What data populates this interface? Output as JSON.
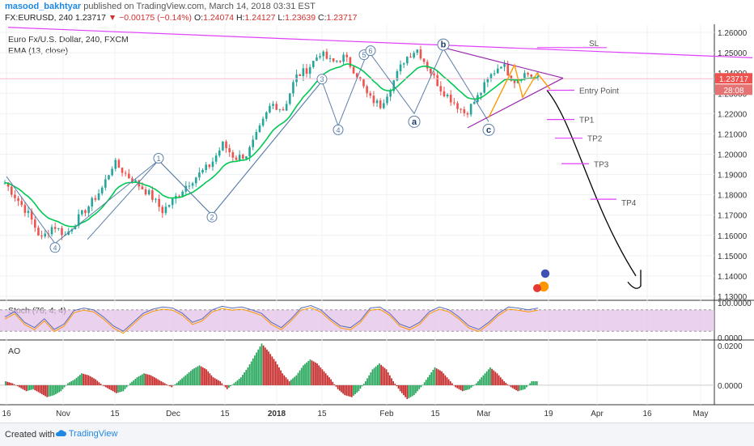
{
  "header": {
    "author": "masood_bakhtyar",
    "published_text": "published on TradingView.com, March 14, 2018 03:31 EST",
    "symbol_line": "FX:EURUSD, 240",
    "last": "1.23717",
    "change": "▼ −0.00175 (−0.14%)",
    "ohlc": [
      {
        "label": "O:",
        "value": "1.24074"
      },
      {
        "label": "H:",
        "value": "1.24127"
      },
      {
        "label": "L:",
        "value": "1.23639"
      },
      {
        "label": "C:",
        "value": "1.23717"
      }
    ]
  },
  "legend": {
    "title": "Euro Fx/U.S. Dollar, 240, FXCM",
    "ema": "EMA (13, close)",
    "stoch": "Stoch (76, 4, 4)",
    "ao": "AO"
  },
  "footer": {
    "created_with": "Created with",
    "brand": "TradingView"
  },
  "colors": {
    "up": "#26a69a",
    "down": "#ef5350",
    "ema": "#00c853",
    "wave": "#5b7ea8",
    "trend": "#e040fb",
    "target": "#e040fb",
    "projection": "#000000",
    "stoch_band": "#e1bee7",
    "price_tag": "#ef5350"
  },
  "chart_data": {
    "type": "candlestick",
    "symbol": "FX:EURUSD",
    "timeframe": "240",
    "x_tick_labels": [
      "16",
      "Nov",
      "15",
      "Dec",
      "15",
      "2018",
      "15",
      "Feb",
      "15",
      "Mar",
      "19",
      "Apr",
      "16",
      "May"
    ],
    "y_ticks": [
      "1.26000",
      "1.25000",
      "1.24000",
      "1.23000",
      "1.22000",
      "1.21000",
      "1.20000",
      "1.19000",
      "1.18000",
      "1.17000",
      "1.16000",
      "1.15000",
      "1.14000",
      "1.13000"
    ],
    "ylim": [
      1.128,
      1.264
    ],
    "price_tag": "1.23717",
    "countdown_tag": "28:08",
    "price_path": [
      1.186,
      1.178,
      1.17,
      1.158,
      1.165,
      1.16,
      1.168,
      1.175,
      1.183,
      1.196,
      1.19,
      1.185,
      1.18,
      1.172,
      1.178,
      1.185,
      1.19,
      1.195,
      1.205,
      1.198,
      1.2,
      1.212,
      1.225,
      1.222,
      1.238,
      1.242,
      1.25,
      1.245,
      1.248,
      1.24,
      1.228,
      1.224,
      1.235,
      1.247,
      1.252,
      1.242,
      1.232,
      1.226,
      1.22,
      1.228,
      1.238,
      1.245,
      1.236,
      1.24,
      1.237
    ],
    "wave_labels": [
      {
        "text": "4",
        "price": 1.154
      },
      {
        "text": "1",
        "price": 1.198
      },
      {
        "text": "2",
        "price": 1.169
      },
      {
        "text": "3",
        "price": 1.237
      },
      {
        "text": "4",
        "price": 1.212
      },
      {
        "text": "5",
        "price": 1.249
      },
      {
        "text": "6",
        "price": 1.251
      },
      {
        "text": "a",
        "price": 1.216
      },
      {
        "text": "b",
        "price": 1.254
      },
      {
        "text": "c",
        "price": 1.212
      }
    ],
    "targets": [
      {
        "label": "SL",
        "price": 1.2525
      },
      {
        "label": "Entry Point",
        "price": 1.2315
      },
      {
        "label": "TP1",
        "price": 1.2171
      },
      {
        "label": "TP2",
        "price": 1.2079
      },
      {
        "label": "TP3",
        "price": 1.1953
      },
      {
        "label": "TP4",
        "price": 1.1778
      }
    ],
    "projection_end": 1.138,
    "stoch": {
      "ylim": [
        0,
        100
      ],
      "y_ticks": [
        "100.0000",
        "0.0000"
      ],
      "band": [
        20,
        80
      ],
      "values": [
        60,
        75,
        45,
        30,
        55,
        25,
        40,
        78,
        85,
        80,
        60,
        35,
        20,
        45,
        70,
        82,
        88,
        85,
        70,
        45,
        55,
        80,
        90,
        85,
        88,
        80,
        70,
        45,
        30,
        55,
        85,
        92,
        80,
        55,
        35,
        30,
        50,
        85,
        88,
        70,
        40,
        30,
        45,
        75,
        88,
        80,
        60,
        35,
        25,
        45,
        70,
        88,
        85,
        80,
        85
      ]
    },
    "ao": {
      "y_ticks": [
        "0.0200",
        "0.0000"
      ],
      "ylim": [
        -0.009,
        0.022
      ],
      "values": [
        0.002,
        0.001,
        -0.001,
        -0.003,
        -0.002,
        -0.004,
        -0.006,
        -0.005,
        -0.003,
        0.001,
        0.003,
        0.006,
        0.005,
        0.003,
        0.0,
        -0.002,
        -0.004,
        -0.003,
        0.001,
        0.004,
        0.006,
        0.005,
        0.003,
        0.001,
        -0.001,
        0.002,
        0.005,
        0.008,
        0.01,
        0.008,
        0.004,
        0.002,
        -0.002,
        0.001,
        0.004,
        0.009,
        0.015,
        0.021,
        0.017,
        0.012,
        0.006,
        0.002,
        0.005,
        0.01,
        0.013,
        0.011,
        0.007,
        0.003,
        -0.002,
        -0.005,
        -0.006,
        -0.003,
        0.002,
        0.008,
        0.011,
        0.008,
        0.002,
        -0.003,
        -0.007,
        -0.005,
        -0.001,
        0.004,
        0.009,
        0.007,
        0.003,
        -0.001,
        -0.003,
        -0.002,
        0.001,
        0.005,
        0.009,
        0.006,
        0.002,
        -0.001,
        -0.003,
        -0.002,
        0.002
      ]
    }
  }
}
